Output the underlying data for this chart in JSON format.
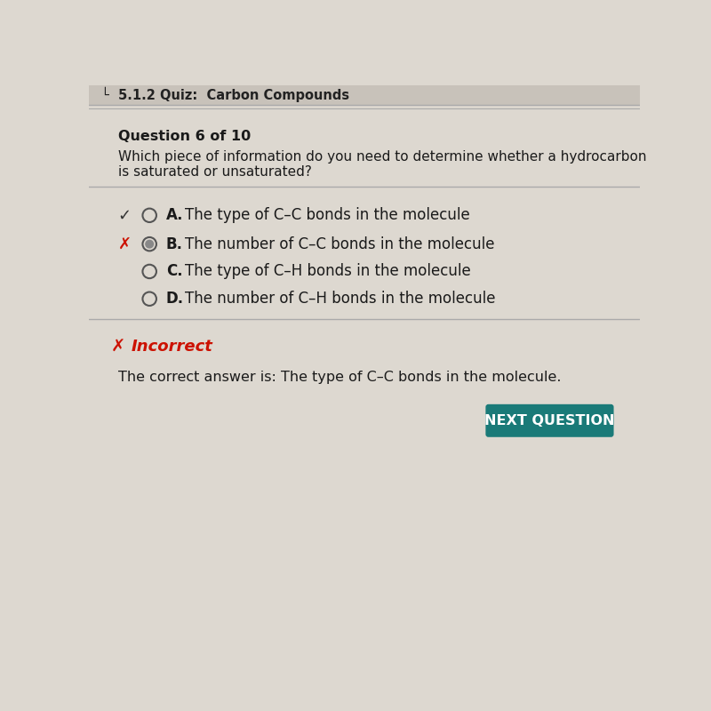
{
  "background_color": "#ddd8d0",
  "header_bar_color": "#c8c2ba",
  "header_text": "└  5.1.2 Quiz:  Carbon Compounds",
  "header_text_color": "#222222",
  "question_label": "Question 6 of 10",
  "question_line1": "Which piece of information do you need to determine whether a hydrocarbon",
  "question_line2": "is saturated or unsaturated?",
  "options": [
    {
      "letter": "A.",
      "text": "The type of C–C bonds in the molecule",
      "has_check": true,
      "has_x": false,
      "radio_filled": false
    },
    {
      "letter": "B.",
      "text": "The number of C–C bonds in the molecule",
      "has_check": false,
      "has_x": true,
      "radio_filled": true
    },
    {
      "letter": "C.",
      "text": "The type of C–H bonds in the molecule",
      "has_check": false,
      "has_x": false,
      "radio_filled": false
    },
    {
      "letter": "D.",
      "text": "The number of C–H bonds in the molecule",
      "has_check": false,
      "has_x": false,
      "radio_filled": false
    }
  ],
  "incorrect_label": "Incorrect",
  "incorrect_color": "#cc1100",
  "correct_answer_text": "The correct answer is: The type of C–C bonds in the molecule.",
  "button_text": "NEXT QUESTION",
  "button_color": "#1a7a78",
  "button_text_color": "#ffffff",
  "divider_color": "#aaaaaa",
  "text_color": "#1a1a1a",
  "check_color": "#333333",
  "x_color": "#cc1100",
  "radio_edge_color": "#555555",
  "radio_fill_color": "#888888"
}
